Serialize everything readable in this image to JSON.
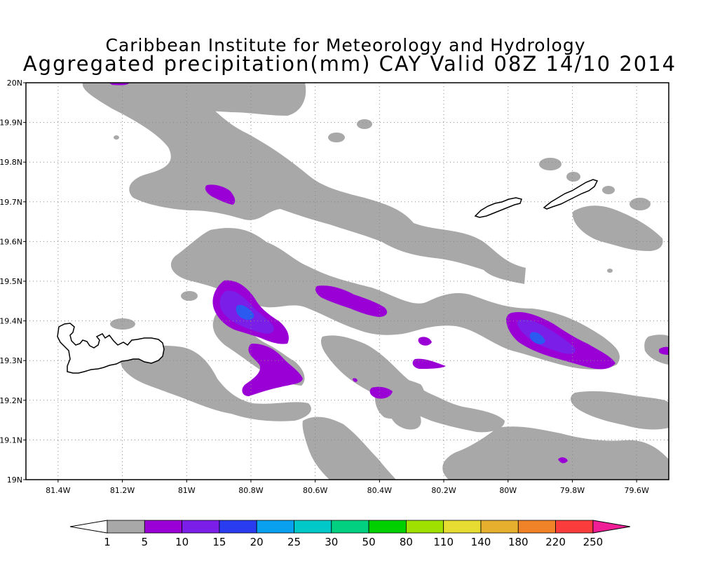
{
  "header": {
    "title_line1": "Caribbean Institute for Meteorology and Hydrology",
    "title_line2": "Aggregated precipitation(mm) CAY Valid 08Z 14/10 2014"
  },
  "map": {
    "lon_range": [
      -81.5,
      -79.5
    ],
    "lat_range": [
      19.0,
      20.0
    ],
    "grid": "dotted",
    "lat_ticks": [
      {
        "v": 20.0,
        "label": "20N"
      },
      {
        "v": 19.9,
        "label": "19.9N"
      },
      {
        "v": 19.8,
        "label": "19.8N"
      },
      {
        "v": 19.7,
        "label": "19.7N"
      },
      {
        "v": 19.6,
        "label": "19.6N"
      },
      {
        "v": 19.5,
        "label": "19.5N"
      },
      {
        "v": 19.4,
        "label": "19.4N"
      },
      {
        "v": 19.3,
        "label": "19.3N"
      },
      {
        "v": 19.2,
        "label": "19.2N"
      },
      {
        "v": 19.1,
        "label": "19.1N"
      },
      {
        "v": 19.0,
        "label": "19N"
      }
    ],
    "lon_ticks": [
      {
        "v": -81.4,
        "label": "81.4W"
      },
      {
        "v": -81.2,
        "label": "81.2W"
      },
      {
        "v": -81.0,
        "label": "81W"
      },
      {
        "v": -80.8,
        "label": "80.8W"
      },
      {
        "v": -80.6,
        "label": "80.6W"
      },
      {
        "v": -80.4,
        "label": "80.4W"
      },
      {
        "v": -80.2,
        "label": "80.2W"
      },
      {
        "v": -80.0,
        "label": "80W"
      },
      {
        "v": -79.8,
        "label": "79.8W"
      },
      {
        "v": -79.6,
        "label": "79.6W"
      }
    ]
  },
  "colors": {
    "low": "#a8a8a8",
    "mid": "#9a00d6",
    "high": "#7a1ee8",
    "peak": "#2a5af0",
    "coast": "#000000"
  },
  "colorbar": {
    "labels": [
      "1",
      "5",
      "10",
      "15",
      "20",
      "25",
      "30",
      "50",
      "80",
      "110",
      "140",
      "180",
      "220",
      "250"
    ],
    "colors": [
      "#a8a8a8",
      "#9a00d6",
      "#7a1ee8",
      "#2a3cf0",
      "#0aa0f0",
      "#00c8c8",
      "#00d080",
      "#00d000",
      "#a0e000",
      "#e6dc32",
      "#e6af2d",
      "#f08228",
      "#fa3c3c"
    ],
    "under_color": "#ffffff",
    "over_color": "#f01e96"
  }
}
